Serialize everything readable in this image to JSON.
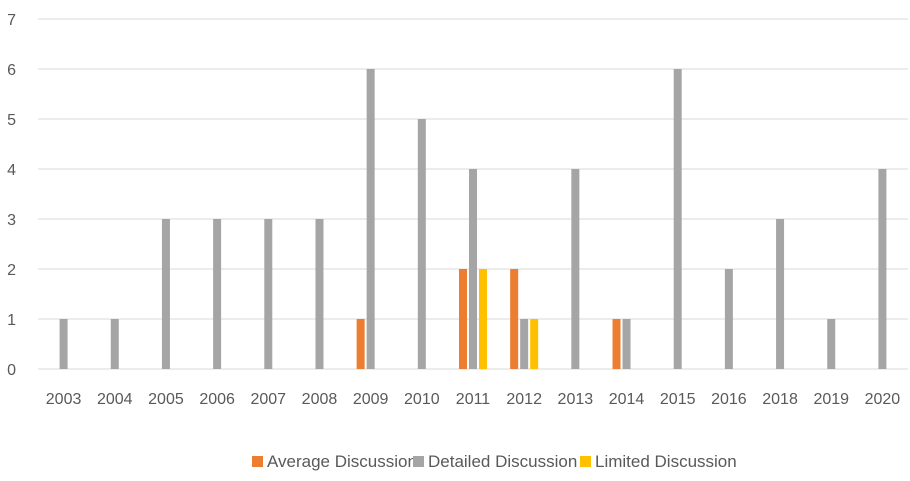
{
  "chart_data": {
    "type": "bar",
    "title": "",
    "xlabel": "",
    "ylabel": "",
    "ylim": [
      0,
      7
    ],
    "yticks": [
      0,
      1,
      2,
      3,
      4,
      5,
      6,
      7
    ],
    "grid": true,
    "legend_position": "bottom",
    "categories": [
      "2003",
      "2004",
      "2005",
      "2006",
      "2007",
      "2008",
      "2009",
      "2010",
      "2011",
      "2012",
      "2013",
      "2014",
      "2015",
      "2016",
      "2018",
      "2019",
      "2020"
    ],
    "series": [
      {
        "name": "Average Discussion",
        "color": "#ED7D31",
        "values": [
          0,
          0,
          0,
          0,
          0,
          0,
          1,
          0,
          2,
          2,
          0,
          1,
          0,
          0,
          0,
          0,
          0
        ]
      },
      {
        "name": "Detailed Discussion",
        "color": "#A5A5A5",
        "values": [
          1,
          1,
          3,
          3,
          3,
          3,
          6,
          5,
          4,
          1,
          4,
          1,
          6,
          2,
          3,
          1,
          4
        ]
      },
      {
        "name": "Limited Discussion",
        "color": "#FFC000",
        "values": [
          0,
          0,
          0,
          0,
          0,
          0,
          0,
          0,
          2,
          1,
          0,
          0,
          0,
          0,
          0,
          0,
          0
        ]
      }
    ]
  }
}
